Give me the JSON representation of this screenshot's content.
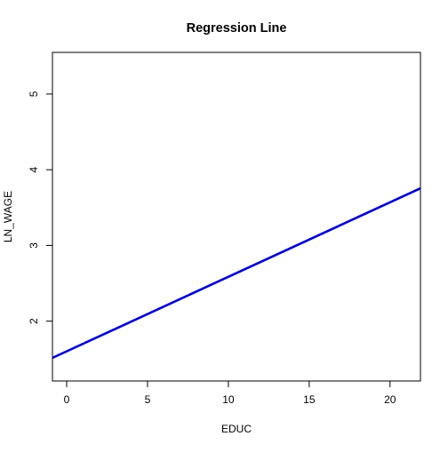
{
  "chart_data": {
    "type": "line",
    "title": "Regression Line",
    "xlabel": "EDUC",
    "ylabel": "LN_WAGE",
    "xlim": [
      -0.88,
      21.88
    ],
    "ylim": [
      1.21,
      5.55
    ],
    "x_ticks": [
      0,
      5,
      10,
      15,
      20
    ],
    "x_tick_labels": [
      "0",
      "5",
      "10",
      "15",
      "20"
    ],
    "y_ticks": [
      2,
      3,
      4,
      5
    ],
    "y_tick_labels": [
      "2",
      "3",
      "4",
      "5"
    ],
    "series": [
      {
        "name": "Regression Line",
        "color": "#0000cc",
        "x": [
          -0.88,
          21.88
        ],
        "y": [
          1.515,
          3.755
        ]
      }
    ],
    "grid": false,
    "legend": "none"
  }
}
